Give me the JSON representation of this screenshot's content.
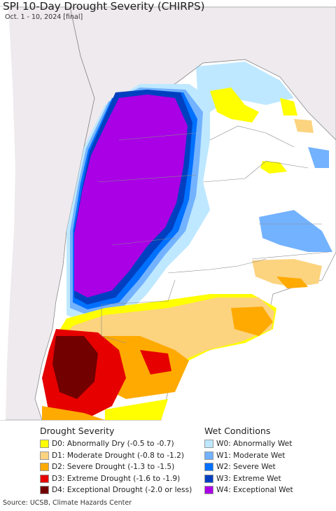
{
  "header": {
    "title": "SPI 10-Day Drought Severity (CHIRPS)",
    "subtitle": "Oct. 1 - 10, 2024 [final]"
  },
  "legend": {
    "drought": {
      "heading": "Drought Severity",
      "items": [
        {
          "label": "D0: Abnormally Dry (-0.5 to -0.7)",
          "color": "#ffff00"
        },
        {
          "label": "D1: Moderate Drought (-0.8 to -1.2)",
          "color": "#fcd37f"
        },
        {
          "label": "D2: Severe Drought (-1.3 to -1.5)",
          "color": "#ffaa00"
        },
        {
          "label": "D3: Extreme Drought (-1.6 to -1.9)",
          "color": "#e60000"
        },
        {
          "label": "D4: Exceptional Drought (-2.0 or less)",
          "color": "#730000"
        }
      ]
    },
    "wet": {
      "heading": "Wet Conditions",
      "items": [
        {
          "label": "W0: Abnormally Wet",
          "color": "#bee8ff"
        },
        {
          "label": "W1: Moderate Wet",
          "color": "#73b2ff"
        },
        {
          "label": "W2: Severe Wet",
          "color": "#0070ff"
        },
        {
          "label": "W3: Extreme Wet",
          "color": "#0040c0"
        },
        {
          "label": "W4: Exceptional Wet",
          "color": "#a900e6"
        }
      ]
    }
  },
  "footer": {
    "source": "Source: UCSB, Climate Hazards Center"
  },
  "colors": {
    "ocean": "#ffffff",
    "outside_land": "#eeeaee",
    "normal": "#ffffff",
    "borders": "#888888"
  }
}
